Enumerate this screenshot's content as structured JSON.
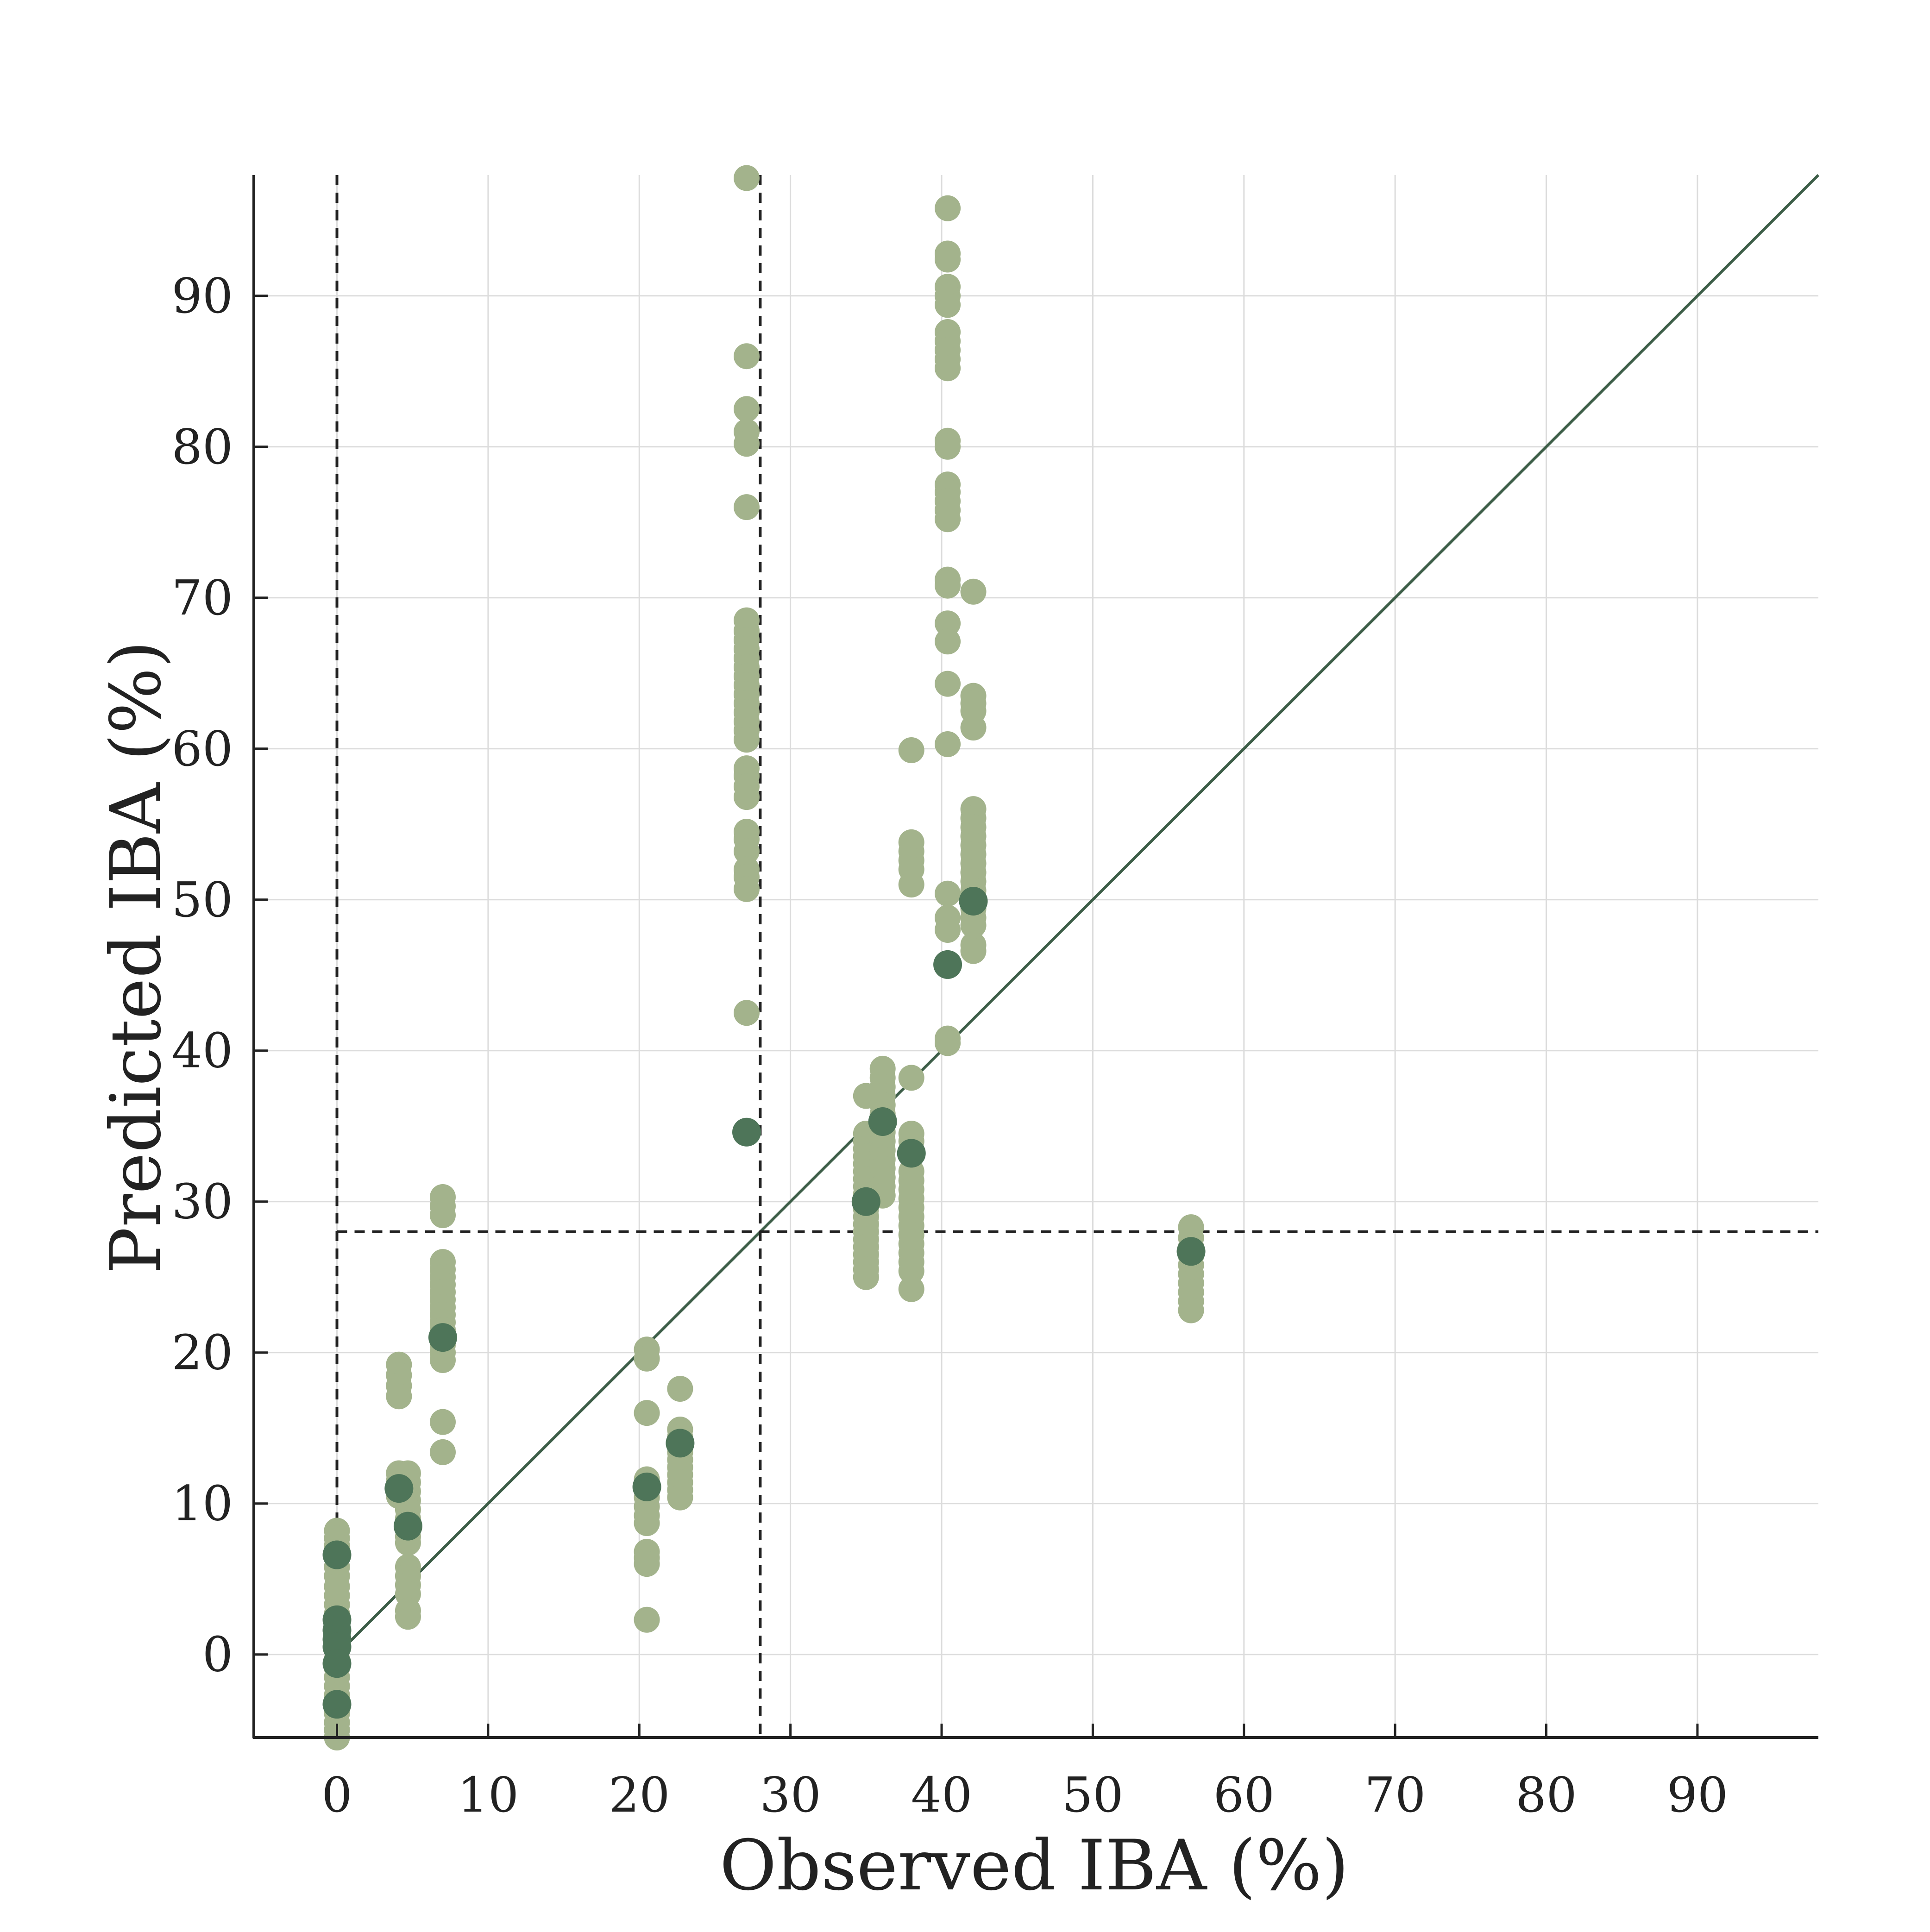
{
  "chart_data": {
    "type": "scatter",
    "xlabel": "Observed IBA (%)",
    "ylabel": "Predicted IBA (%)",
    "xlim": [
      -5.5,
      98
    ],
    "ylim": [
      -5.5,
      98
    ],
    "xticks": [
      0,
      10,
      20,
      30,
      40,
      50,
      60,
      70,
      80,
      90
    ],
    "yticks": [
      0,
      10,
      20,
      30,
      40,
      50,
      60,
      70,
      80,
      90
    ],
    "xtick_labels": [
      "0",
      "10",
      "20",
      "30",
      "40",
      "50",
      "60",
      "70",
      "80",
      "90"
    ],
    "ytick_labels": [
      "0",
      "10",
      "20",
      "30",
      "40",
      "50",
      "60",
      "70",
      "80",
      "90"
    ],
    "grid": true,
    "reference_lines": [
      {
        "kind": "identity",
        "style": "solid",
        "color": "#3d5e48"
      },
      {
        "kind": "vertical",
        "x": 0,
        "style": "dashed",
        "color": "#222222"
      },
      {
        "kind": "vertical",
        "x": 28,
        "style": "dashed",
        "color": "#222222"
      },
      {
        "kind": "horizontal",
        "y": 28,
        "x_from": 0,
        "style": "dashed",
        "color": "#222222"
      }
    ],
    "series": [
      {
        "color": "#a3b38c",
        "points": [
          [
            0,
            8.2
          ],
          [
            0,
            7.7
          ],
          [
            0,
            7.2
          ],
          [
            0,
            6.5
          ],
          [
            0,
            5.8
          ],
          [
            0,
            5.2
          ],
          [
            0,
            4.5
          ],
          [
            0,
            3.9
          ],
          [
            0,
            3.3
          ],
          [
            0,
            2.7
          ],
          [
            0,
            2.1
          ],
          [
            0,
            1.5
          ],
          [
            0,
            0.9
          ],
          [
            0,
            0.3
          ],
          [
            0,
            -0.3
          ],
          [
            0,
            -0.9
          ],
          [
            0,
            -1.5
          ],
          [
            0,
            -2.1
          ],
          [
            0,
            -2.7
          ],
          [
            0,
            -3.3
          ],
          [
            0,
            -3.9
          ],
          [
            0,
            -4.5
          ],
          [
            0,
            -5.0
          ],
          [
            0,
            -5.5
          ],
          [
            4.1,
            19.2
          ],
          [
            4.1,
            18.5
          ],
          [
            4.1,
            17.8
          ],
          [
            4.1,
            17.1
          ],
          [
            4.1,
            12.0
          ],
          [
            4.1,
            11.5
          ],
          [
            4.1,
            11.0
          ],
          [
            4.1,
            10.5
          ],
          [
            4.7,
            12.0
          ],
          [
            4.7,
            11.4
          ],
          [
            4.7,
            10.8
          ],
          [
            4.7,
            10.2
          ],
          [
            4.7,
            9.6
          ],
          [
            4.7,
            9.0
          ],
          [
            4.7,
            8.4
          ],
          [
            4.7,
            7.8
          ],
          [
            4.7,
            7.4
          ],
          [
            4.7,
            5.8
          ],
          [
            4.7,
            5.2
          ],
          [
            4.7,
            4.6
          ],
          [
            4.7,
            4.0
          ],
          [
            4.7,
            2.9
          ],
          [
            4.7,
            2.5
          ],
          [
            7.0,
            30.3
          ],
          [
            7.0,
            29.7
          ],
          [
            7.0,
            29.1
          ],
          [
            7.0,
            26.0
          ],
          [
            7.0,
            25.5
          ],
          [
            7.0,
            25.0
          ],
          [
            7.0,
            24.5
          ],
          [
            7.0,
            24.0
          ],
          [
            7.0,
            23.5
          ],
          [
            7.0,
            23.0
          ],
          [
            7.0,
            22.5
          ],
          [
            7.0,
            22.0
          ],
          [
            7.0,
            21.5
          ],
          [
            7.0,
            21.0
          ],
          [
            7.0,
            20.5
          ],
          [
            7.0,
            20.0
          ],
          [
            7.0,
            19.5
          ],
          [
            7.0,
            15.4
          ],
          [
            7.0,
            13.4
          ],
          [
            20.5,
            20.2
          ],
          [
            20.5,
            19.6
          ],
          [
            20.5,
            16.0
          ],
          [
            20.5,
            11.6
          ],
          [
            20.5,
            11.0
          ],
          [
            20.5,
            10.4
          ],
          [
            20.5,
            9.8
          ],
          [
            20.5,
            9.2
          ],
          [
            20.5,
            8.7
          ],
          [
            20.5,
            6.8
          ],
          [
            20.5,
            6.4
          ],
          [
            20.5,
            6.0
          ],
          [
            20.5,
            2.3
          ],
          [
            22.7,
            17.6
          ],
          [
            22.7,
            14.9
          ],
          [
            22.7,
            14.4
          ],
          [
            22.7,
            13.4
          ],
          [
            22.7,
            12.9
          ],
          [
            22.7,
            12.4
          ],
          [
            22.7,
            11.9
          ],
          [
            22.7,
            11.4
          ],
          [
            22.7,
            10.9
          ],
          [
            22.7,
            10.4
          ],
          [
            27.1,
            97.8
          ],
          [
            27.1,
            86.0
          ],
          [
            27.1,
            82.5
          ],
          [
            27.1,
            81.0
          ],
          [
            27.1,
            80.2
          ],
          [
            27.1,
            76.0
          ],
          [
            27.1,
            68.5
          ],
          [
            27.1,
            67.8
          ],
          [
            27.1,
            67.2
          ],
          [
            27.1,
            66.6
          ],
          [
            27.1,
            66.0
          ],
          [
            27.1,
            65.4
          ],
          [
            27.1,
            64.8
          ],
          [
            27.1,
            64.2
          ],
          [
            27.1,
            63.6
          ],
          [
            27.1,
            63.0
          ],
          [
            27.1,
            62.4
          ],
          [
            27.1,
            61.8
          ],
          [
            27.1,
            61.2
          ],
          [
            27.1,
            60.6
          ],
          [
            27.1,
            58.7
          ],
          [
            27.1,
            58.2
          ],
          [
            27.1,
            57.5
          ],
          [
            27.1,
            56.8
          ],
          [
            27.1,
            54.5
          ],
          [
            27.1,
            54.0
          ],
          [
            27.1,
            53.2
          ],
          [
            27.1,
            52.0
          ],
          [
            27.1,
            51.5
          ],
          [
            27.1,
            50.7
          ],
          [
            27.1,
            42.5
          ],
          [
            35.0,
            37.0
          ],
          [
            35.0,
            34.5
          ],
          [
            35.0,
            34.0
          ],
          [
            35.0,
            33.5
          ],
          [
            35.0,
            33.0
          ],
          [
            35.0,
            32.5
          ],
          [
            35.0,
            32.0
          ],
          [
            35.0,
            31.5
          ],
          [
            35.0,
            31.0
          ],
          [
            35.0,
            30.5
          ],
          [
            35.0,
            29.5
          ],
          [
            35.0,
            29.0
          ],
          [
            35.0,
            28.5
          ],
          [
            35.0,
            28.0
          ],
          [
            35.0,
            27.5
          ],
          [
            35.0,
            27.0
          ],
          [
            35.0,
            26.5
          ],
          [
            35.0,
            26.0
          ],
          [
            35.0,
            25.5
          ],
          [
            35.0,
            25.0
          ],
          [
            36.1,
            38.8
          ],
          [
            36.1,
            38.2
          ],
          [
            36.1,
            37.6
          ],
          [
            36.1,
            37.0
          ],
          [
            36.1,
            36.4
          ],
          [
            36.1,
            35.8
          ],
          [
            36.1,
            34.6
          ],
          [
            36.1,
            34.0
          ],
          [
            36.1,
            33.4
          ],
          [
            36.1,
            32.8
          ],
          [
            36.1,
            32.2
          ],
          [
            36.1,
            31.6
          ],
          [
            36.1,
            31.0
          ],
          [
            36.1,
            30.4
          ],
          [
            38.0,
            59.9
          ],
          [
            38.0,
            53.8
          ],
          [
            38.0,
            53.2
          ],
          [
            38.0,
            52.6
          ],
          [
            38.0,
            52.0
          ],
          [
            38.0,
            51.0
          ],
          [
            38.0,
            38.2
          ],
          [
            38.0,
            34.5
          ],
          [
            38.0,
            34.0
          ],
          [
            38.0,
            32.0
          ],
          [
            38.0,
            31.4
          ],
          [
            38.0,
            30.8
          ],
          [
            38.0,
            30.2
          ],
          [
            38.0,
            29.6
          ],
          [
            38.0,
            29.0
          ],
          [
            38.0,
            28.4
          ],
          [
            38.0,
            27.8
          ],
          [
            38.0,
            27.2
          ],
          [
            38.0,
            26.6
          ],
          [
            38.0,
            26.0
          ],
          [
            38.0,
            25.4
          ],
          [
            38.0,
            24.2
          ],
          [
            40.4,
            95.8
          ],
          [
            40.4,
            92.8
          ],
          [
            40.4,
            92.4
          ],
          [
            40.4,
            90.6
          ],
          [
            40.4,
            90.0
          ],
          [
            40.4,
            89.4
          ],
          [
            40.4,
            87.6
          ],
          [
            40.4,
            87.0
          ],
          [
            40.4,
            86.4
          ],
          [
            40.4,
            85.8
          ],
          [
            40.4,
            85.2
          ],
          [
            40.4,
            80.4
          ],
          [
            40.4,
            80.0
          ],
          [
            40.4,
            77.5
          ],
          [
            40.4,
            77.0
          ],
          [
            40.4,
            76.4
          ],
          [
            40.4,
            75.8
          ],
          [
            40.4,
            75.2
          ],
          [
            40.4,
            71.2
          ],
          [
            40.4,
            70.8
          ],
          [
            40.4,
            68.3
          ],
          [
            40.4,
            67.1
          ],
          [
            40.4,
            64.3
          ],
          [
            40.4,
            60.3
          ],
          [
            40.4,
            50.4
          ],
          [
            40.4,
            48.8
          ],
          [
            40.4,
            48.0
          ],
          [
            40.4,
            40.8
          ],
          [
            40.4,
            40.5
          ],
          [
            42.1,
            70.4
          ],
          [
            42.1,
            63.5
          ],
          [
            42.1,
            63.0
          ],
          [
            42.1,
            62.5
          ],
          [
            42.1,
            61.4
          ],
          [
            42.1,
            56.0
          ],
          [
            42.1,
            55.4
          ],
          [
            42.1,
            54.8
          ],
          [
            42.1,
            54.2
          ],
          [
            42.1,
            53.6
          ],
          [
            42.1,
            53.0
          ],
          [
            42.1,
            52.4
          ],
          [
            42.1,
            51.8
          ],
          [
            42.1,
            51.2
          ],
          [
            42.1,
            50.6
          ],
          [
            42.1,
            50.0
          ],
          [
            42.1,
            49.4
          ],
          [
            42.1,
            48.8
          ],
          [
            42.1,
            48.3
          ],
          [
            42.1,
            47.0
          ],
          [
            42.1,
            46.6
          ],
          [
            56.5,
            28.3
          ],
          [
            56.5,
            27.6
          ],
          [
            56.5,
            27.0
          ],
          [
            56.5,
            26.4
          ],
          [
            56.5,
            25.8
          ],
          [
            56.5,
            25.2
          ],
          [
            56.5,
            24.6
          ],
          [
            56.5,
            24.0
          ],
          [
            56.5,
            23.4
          ],
          [
            56.5,
            22.8
          ]
        ]
      },
      {
        "color": "#4e7559",
        "points": [
          [
            0,
            6.6
          ],
          [
            0,
            2.3
          ],
          [
            0,
            1.6
          ],
          [
            0,
            1.0
          ],
          [
            0,
            0.5
          ],
          [
            0,
            -0.6
          ],
          [
            0,
            -3.3
          ],
          [
            4.1,
            11.0
          ],
          [
            4.7,
            8.5
          ],
          [
            7.0,
            21.0
          ],
          [
            20.5,
            11.1
          ],
          [
            22.7,
            14.0
          ],
          [
            27.1,
            34.6
          ],
          [
            35.0,
            30.0
          ],
          [
            36.1,
            35.3
          ],
          [
            38.0,
            33.2
          ],
          [
            40.4,
            45.7
          ],
          [
            42.1,
            49.9
          ],
          [
            56.5,
            26.7
          ]
        ]
      }
    ]
  }
}
